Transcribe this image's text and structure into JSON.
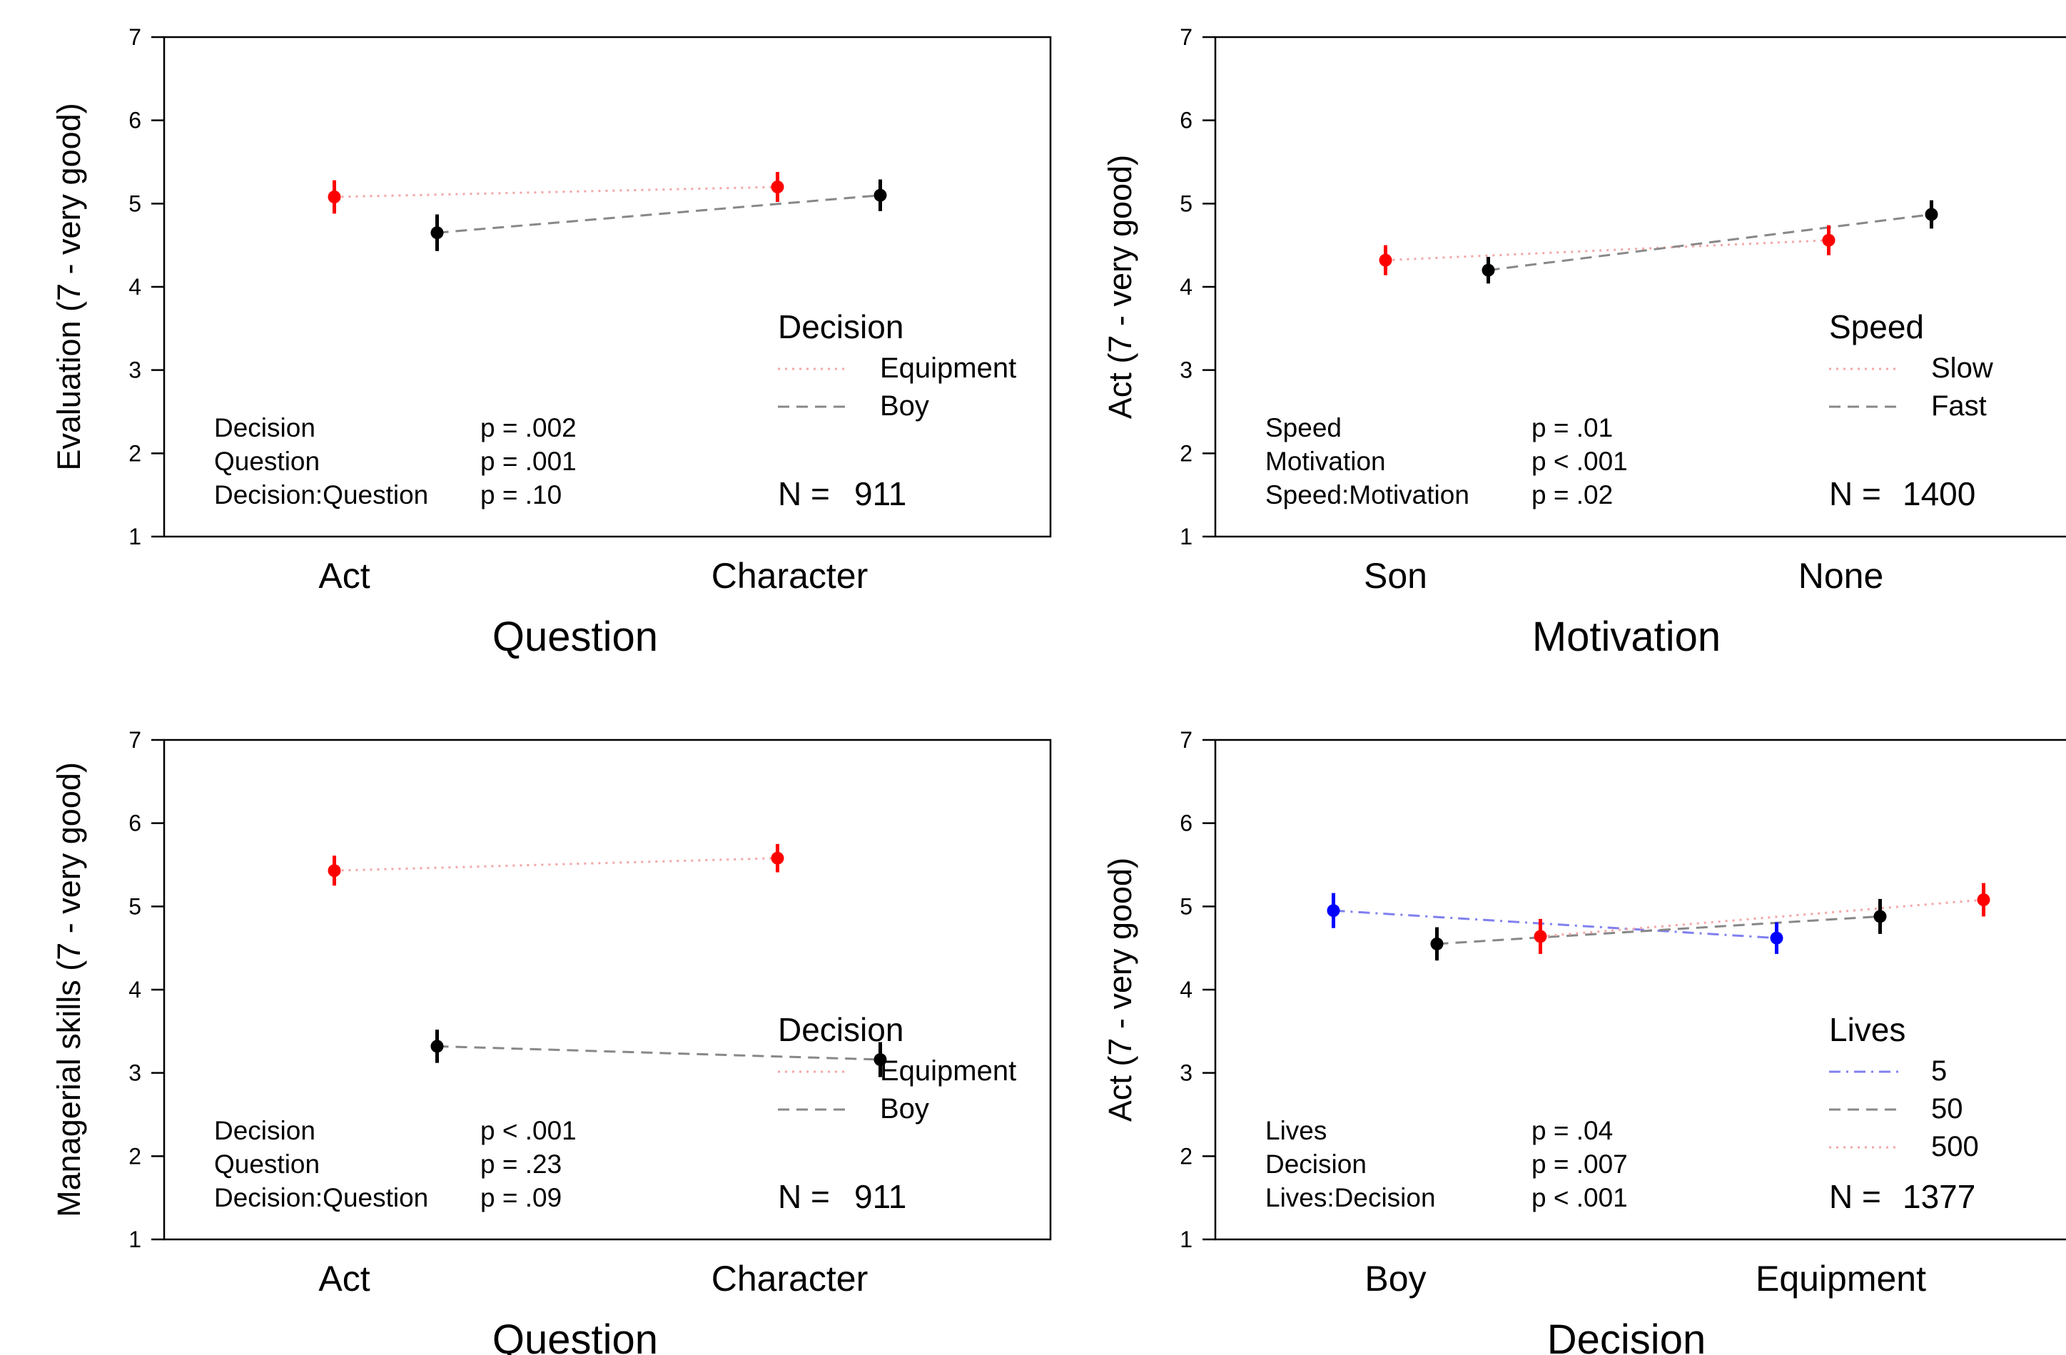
{
  "chart_data": [
    {
      "type": "line",
      "subtype": "interaction-plot-with-error-bars",
      "xlabel": "Question",
      "ylabel": "Evaluation (7 - very good)",
      "categories": [
        "Act",
        "Character"
      ],
      "ylim": [
        1,
        7
      ],
      "yticks": [
        "1",
        "2",
        "3",
        "4",
        "5",
        "6",
        "7"
      ],
      "legend": {
        "title": "Decision",
        "position": "right"
      },
      "series": [
        {
          "name": "Equipment",
          "color": "#ff0000",
          "line_color": "#f4a6a6",
          "dash": "dotted",
          "values": [
            5.08,
            5.2
          ],
          "err": [
            0.2,
            0.18
          ]
        },
        {
          "name": "Boy",
          "color": "#000000",
          "line_color": "#888888",
          "dash": "dashed",
          "values": [
            4.65,
            5.1
          ],
          "err": [
            0.22,
            0.19
          ]
        }
      ],
      "stats": [
        {
          "term": "Decision",
          "p": "p = .002"
        },
        {
          "term": "Question",
          "p": "p = .001"
        },
        {
          "term": "Decision:Question",
          "p": "p = .10"
        }
      ],
      "n_label": "N =",
      "n_value": "911"
    },
    {
      "type": "line",
      "subtype": "interaction-plot-with-error-bars",
      "xlabel": "Motivation",
      "ylabel": "Act (7 - very good)",
      "categories": [
        "Son",
        "None"
      ],
      "ylim": [
        1,
        7
      ],
      "yticks": [
        "1",
        "2",
        "3",
        "4",
        "5",
        "6",
        "7"
      ],
      "legend": {
        "title": "Speed",
        "position": "right"
      },
      "series": [
        {
          "name": "Slow",
          "color": "#ff0000",
          "line_color": "#f4a6a6",
          "dash": "dotted",
          "values": [
            4.32,
            4.56
          ],
          "err": [
            0.18,
            0.18
          ]
        },
        {
          "name": "Fast",
          "color": "#000000",
          "line_color": "#888888",
          "dash": "dashed",
          "values": [
            4.2,
            4.87
          ],
          "err": [
            0.16,
            0.17
          ]
        }
      ],
      "stats": [
        {
          "term": "Speed",
          "p": "p = .01"
        },
        {
          "term": "Motivation",
          "p": "p < .001"
        },
        {
          "term": "Speed:Motivation",
          "p": "p = .02"
        }
      ],
      "n_label": "N =",
      "n_value": "1400"
    },
    {
      "type": "line",
      "subtype": "interaction-plot-with-error-bars",
      "xlabel": "Question",
      "ylabel": "Managerial skills (7 - very good)",
      "categories": [
        "Act",
        "Character"
      ],
      "ylim": [
        1,
        7
      ],
      "yticks": [
        "1",
        "2",
        "3",
        "4",
        "5",
        "6",
        "7"
      ],
      "legend": {
        "title": "Decision",
        "position": "right"
      },
      "series": [
        {
          "name": "Equipment",
          "color": "#ff0000",
          "line_color": "#f4a6a6",
          "dash": "dotted",
          "values": [
            5.43,
            5.58
          ],
          "err": [
            0.18,
            0.17
          ]
        },
        {
          "name": "Boy",
          "color": "#000000",
          "line_color": "#888888",
          "dash": "dashed",
          "values": [
            3.32,
            3.16
          ],
          "err": [
            0.2,
            0.21
          ]
        }
      ],
      "stats": [
        {
          "term": "Decision",
          "p": "p < .001"
        },
        {
          "term": "Question",
          "p": "p = .23"
        },
        {
          "term": "Decision:Question",
          "p": "p = .09"
        }
      ],
      "n_label": "N =",
      "n_value": "911"
    },
    {
      "type": "line",
      "subtype": "interaction-plot-with-error-bars",
      "xlabel": "Decision",
      "ylabel": "Act (7 - very good)",
      "categories": [
        "Boy",
        "Equipment"
      ],
      "ylim": [
        1,
        7
      ],
      "yticks": [
        "1",
        "2",
        "3",
        "4",
        "5",
        "6",
        "7"
      ],
      "legend": {
        "title": "Lives",
        "position": "right"
      },
      "series": [
        {
          "name": "5",
          "color": "#0000ff",
          "line_color": "#8080f0",
          "dash": "dashdot",
          "values": [
            4.95,
            4.62
          ],
          "err": [
            0.21,
            0.19
          ]
        },
        {
          "name": "50",
          "color": "#000000",
          "line_color": "#888888",
          "dash": "dashed",
          "values": [
            4.55,
            4.88
          ],
          "err": [
            0.2,
            0.21
          ]
        },
        {
          "name": "500",
          "color": "#ff0000",
          "line_color": "#f4a6a6",
          "dash": "dotted",
          "values": [
            4.64,
            5.08
          ],
          "err": [
            0.21,
            0.2
          ]
        }
      ],
      "stats": [
        {
          "term": "Lives",
          "p": "p = .04"
        },
        {
          "term": "Decision",
          "p": "p = .007"
        },
        {
          "term": "Lives:Decision",
          "p": "p < .001"
        }
      ],
      "n_label": "N =",
      "n_value": "1377"
    }
  ]
}
